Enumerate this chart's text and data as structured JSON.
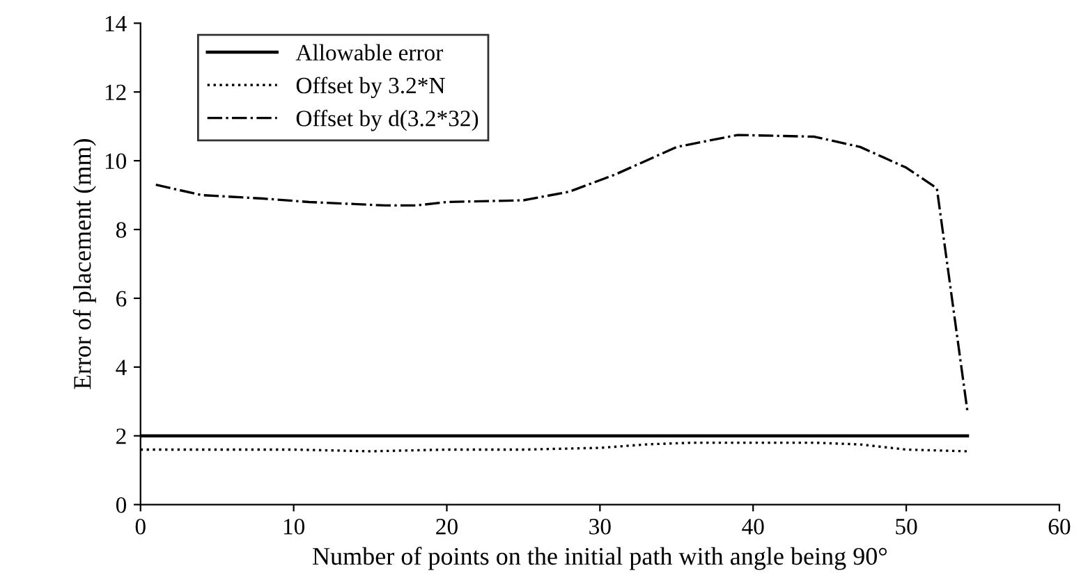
{
  "chart_data": {
    "type": "line",
    "xlabel": "Number of points on the initial path with angle being 90°",
    "ylabel": "Error of placement (mm)",
    "xlim": [
      0,
      60
    ],
    "xticks": [
      0,
      10,
      20,
      30,
      40,
      50,
      60
    ],
    "ylim": [
      0,
      14
    ],
    "yticks": [
      0,
      2,
      4,
      6,
      8,
      10,
      12,
      14
    ],
    "grid": false,
    "legend": "top left",
    "marker": "none",
    "series": [
      {
        "name": "Allowable error",
        "color": "#000000",
        "line_style": "solid",
        "x": [
          0,
          54
        ],
        "values": [
          2,
          2
        ]
      },
      {
        "name": "Offset by 3.2*N",
        "color": "#000000",
        "line_style": "dotted",
        "x": [
          0,
          5,
          10,
          15,
          20,
          25,
          30,
          33,
          36,
          40,
          44,
          47,
          50,
          54
        ],
        "values": [
          1.6,
          1.6,
          1.6,
          1.55,
          1.6,
          1.6,
          1.65,
          1.75,
          1.8,
          1.8,
          1.8,
          1.75,
          1.6,
          1.55
        ]
      },
      {
        "name": "Offset by d(3.2*32)",
        "color": "#000000",
        "line_style": "dashdot",
        "x": [
          1,
          4,
          8,
          11,
          16,
          18,
          20,
          25,
          28,
          31,
          35,
          39,
          44,
          47,
          50,
          52,
          54
        ],
        "values": [
          9.3,
          9.0,
          8.9,
          8.8,
          8.7,
          8.7,
          8.8,
          8.85,
          9.1,
          9.6,
          10.4,
          10.75,
          10.7,
          10.4,
          9.8,
          9.2,
          2.7
        ]
      }
    ]
  }
}
